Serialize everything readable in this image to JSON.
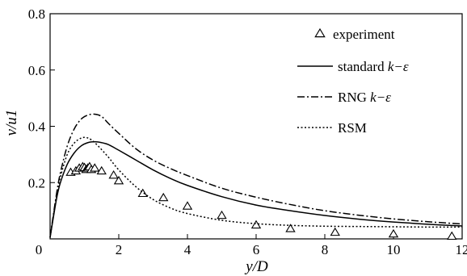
{
  "chart_data": {
    "type": "line",
    "title": "",
    "xlabel": "y/D",
    "ylabel": "v/u1",
    "xlim": [
      0,
      12
    ],
    "ylim": [
      0,
      0.8
    ],
    "xticks": [
      0,
      2,
      4,
      6,
      8,
      10,
      12
    ],
    "yticks": [
      0.2,
      0.4,
      0.6,
      0.8
    ],
    "xtick_labels": [
      "0",
      "2",
      "4",
      "6",
      "8",
      "10",
      "12"
    ],
    "ytick_labels": [
      "0.2",
      "0.4",
      "0.6",
      "0.8"
    ],
    "origin_label": "0",
    "grid": false,
    "legend_position": "top-right",
    "series": [
      {
        "name": "experiment",
        "style": "triangle-markers",
        "x": [
          0.6,
          0.75,
          0.85,
          0.95,
          1.0,
          1.05,
          1.1,
          1.15,
          1.2,
          1.3,
          1.5,
          1.85,
          2.0,
          2.7,
          3.3,
          4.0,
          5.0,
          6.0,
          7.0,
          8.3,
          10.0,
          11.7
        ],
        "y": [
          0.235,
          0.24,
          0.25,
          0.255,
          0.252,
          0.245,
          0.25,
          0.255,
          0.245,
          0.25,
          0.24,
          0.225,
          0.205,
          0.16,
          0.145,
          0.115,
          0.082,
          0.048,
          0.035,
          0.022,
          0.016,
          0.008
        ]
      },
      {
        "name": "standard k−ε",
        "style": "solid",
        "x": [
          0,
          0.1,
          0.2,
          0.3,
          0.5,
          0.7,
          0.9,
          1.1,
          1.3,
          1.5,
          1.7,
          2.0,
          2.5,
          3.0,
          3.5,
          4.0,
          5.0,
          6.0,
          7.0,
          8.0,
          9.0,
          10.0,
          11.0,
          12.0
        ],
        "y": [
          0.005,
          0.08,
          0.15,
          0.2,
          0.265,
          0.305,
          0.33,
          0.342,
          0.345,
          0.342,
          0.335,
          0.315,
          0.28,
          0.245,
          0.215,
          0.19,
          0.15,
          0.12,
          0.1,
          0.083,
          0.07,
          0.06,
          0.052,
          0.046
        ]
      },
      {
        "name": "RNG k−ε",
        "style": "dash-dot",
        "x": [
          0,
          0.1,
          0.2,
          0.3,
          0.5,
          0.7,
          0.9,
          1.1,
          1.3,
          1.5,
          1.7,
          2.0,
          2.5,
          3.0,
          3.5,
          4.0,
          5.0,
          6.0,
          7.0,
          8.0,
          9.0,
          10.0,
          11.0,
          12.0
        ],
        "y": [
          0.005,
          0.09,
          0.17,
          0.235,
          0.33,
          0.39,
          0.425,
          0.44,
          0.443,
          0.435,
          0.41,
          0.375,
          0.32,
          0.28,
          0.25,
          0.225,
          0.18,
          0.148,
          0.122,
          0.1,
          0.084,
          0.071,
          0.061,
          0.053
        ]
      },
      {
        "name": "RSM",
        "style": "dotted",
        "x": [
          0,
          0.1,
          0.2,
          0.3,
          0.5,
          0.7,
          0.9,
          1.05,
          1.2,
          1.4,
          1.7,
          2.0,
          2.5,
          3.0,
          3.5,
          4.0,
          5.0,
          6.0,
          7.0,
          8.0,
          9.0,
          10.0,
          11.0,
          12.0
        ],
        "y": [
          0.005,
          0.085,
          0.16,
          0.22,
          0.3,
          0.34,
          0.358,
          0.36,
          0.352,
          0.33,
          0.29,
          0.245,
          0.185,
          0.14,
          0.11,
          0.09,
          0.066,
          0.054,
          0.048,
          0.045,
          0.044,
          0.043,
          0.042,
          0.042
        ]
      }
    ]
  }
}
